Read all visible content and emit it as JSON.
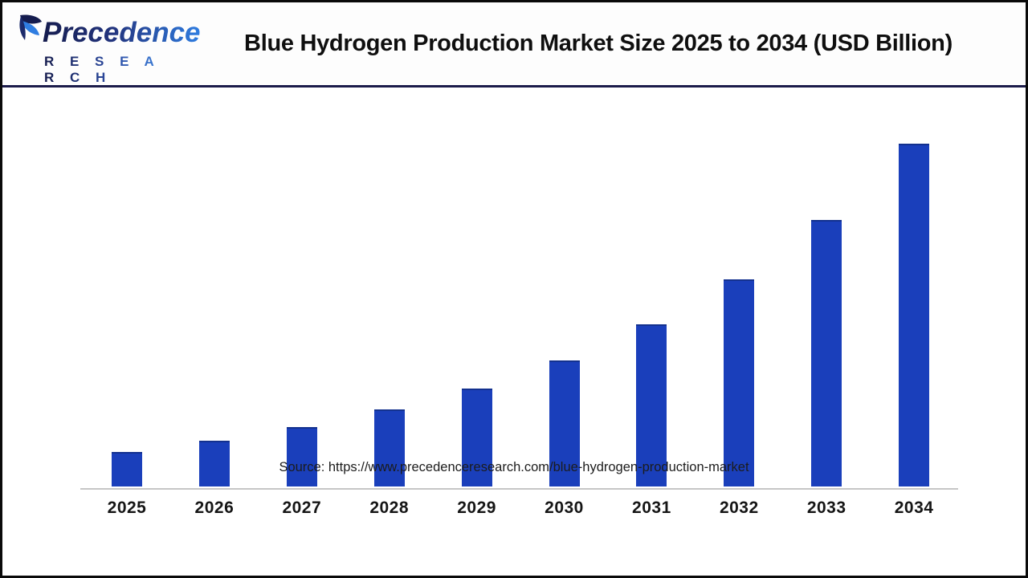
{
  "header": {
    "logo": {
      "line1": "Precedence",
      "line2": "R E S E A R C H"
    },
    "title": "Blue Hydrogen Production Market Size 2025 to 2034 (USD Billion)"
  },
  "chart_data": {
    "type": "bar",
    "title": "Blue Hydrogen Production Market Size 2025 to 2034 (USD Billion)",
    "categories": [
      "2025",
      "2026",
      "2027",
      "2028",
      "2029",
      "2030",
      "2031",
      "2032",
      "2033",
      "2034"
    ],
    "values": [
      10.1,
      13.3,
      17.3,
      22.5,
      28.6,
      36.8,
      47.3,
      60.4,
      77.8,
      100
    ],
    "values_unit": "relative bar height, percent of tallest (2034) bar; no y-axis or data labels are shown in the chart",
    "xlabel": "",
    "ylabel": "",
    "ylim": [
      0,
      100
    ],
    "grid": false,
    "y_axis_visible": false,
    "data_labels_visible": false,
    "legend": "none",
    "bar_color": "#1a3fbb",
    "axis_line_color": "#c6c6c6"
  },
  "footer": {
    "source": "Source: https://www.precedenceresearch.com/blue-hydrogen-production-market"
  },
  "colors": {
    "bar": "#1a3fbb",
    "header_divider": "#1b1b4a",
    "page_border": "#0a0a0a",
    "logo_navy": "#151c4e",
    "logo_blue": "#2f7de1",
    "title_text": "#0f0f0f"
  }
}
